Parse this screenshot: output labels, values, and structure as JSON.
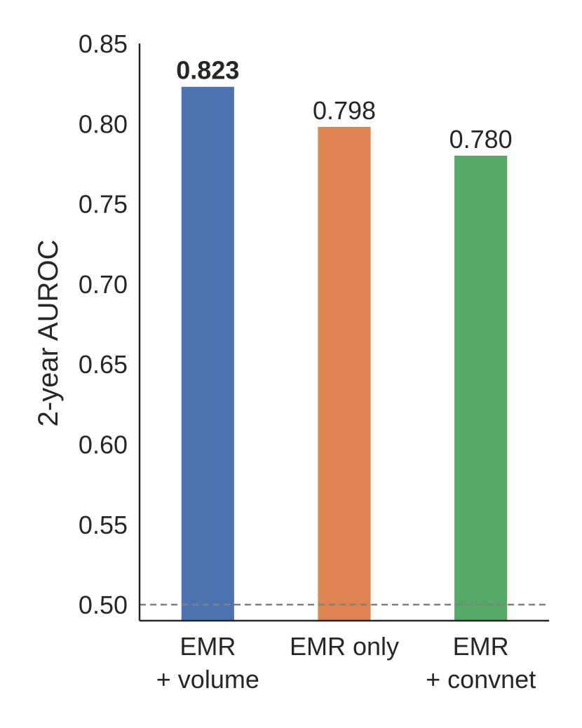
{
  "chart_data": {
    "type": "bar",
    "categories": [
      "EMR\n+ volume",
      "EMR only",
      "EMR\n+ convnet"
    ],
    "values": [
      0.823,
      0.798,
      0.78
    ],
    "value_labels": [
      "0.823",
      "0.798",
      "0.780"
    ],
    "highlight_index": 0,
    "colors": [
      "#4c72b0",
      "#dd8452",
      "#55a868"
    ],
    "title": "",
    "xlabel": "",
    "ylabel": "2-year AUROC",
    "ylim": [
      0.49,
      0.85
    ],
    "yticks": [
      0.5,
      0.55,
      0.6,
      0.65,
      0.7,
      0.75,
      0.8,
      0.85
    ],
    "ytick_labels": [
      "0.50",
      "0.55",
      "0.60",
      "0.65",
      "0.70",
      "0.75",
      "0.80",
      "0.85"
    ],
    "reference_line": {
      "y": 0.5,
      "style": "dashed",
      "color": "#808080"
    },
    "grid": false,
    "legend": "none"
  }
}
